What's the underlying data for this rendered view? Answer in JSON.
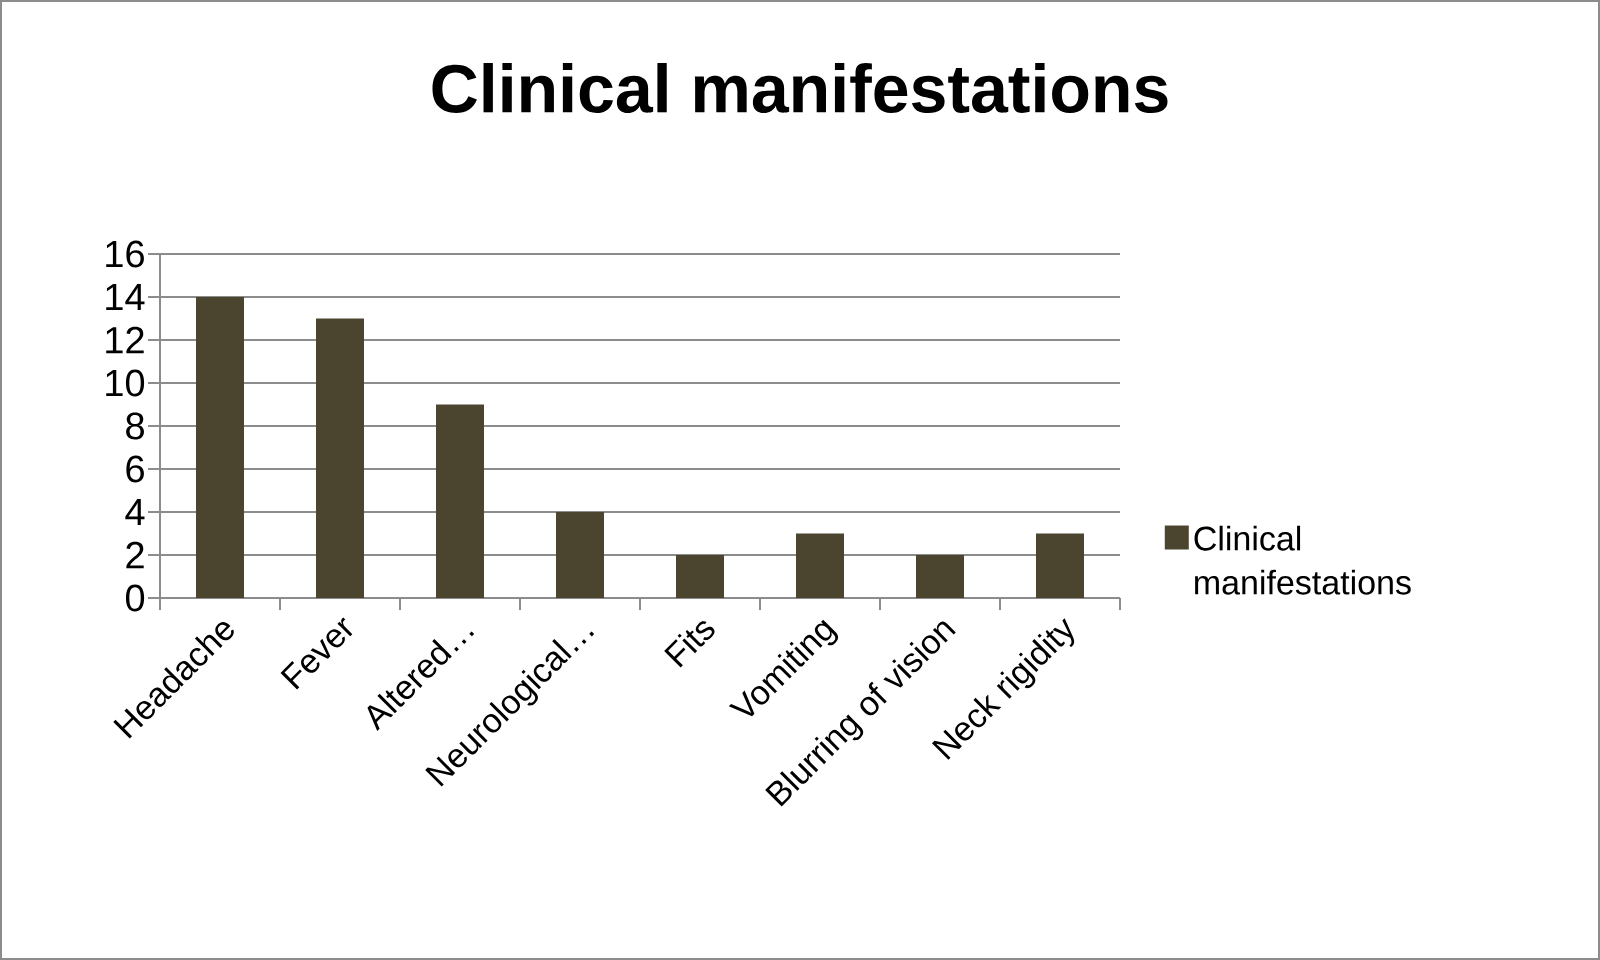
{
  "chart_data": {
    "type": "bar",
    "title": "Clinical manifestations",
    "categories": [
      "Headache",
      "Fever",
      "Altered…",
      "Neurological…",
      "Fits",
      "Vomiting",
      "Blurring of vision",
      "Neck rigidity"
    ],
    "series": [
      {
        "name": "Clinical manifestations",
        "color": "#4b452f",
        "values": [
          14,
          13,
          9,
          4,
          2,
          3,
          2,
          3
        ]
      }
    ],
    "ylim": [
      0,
      16
    ],
    "yticks": [
      0,
      2,
      4,
      6,
      8,
      10,
      12,
      14,
      16
    ],
    "grid": "y",
    "legend": "right"
  }
}
